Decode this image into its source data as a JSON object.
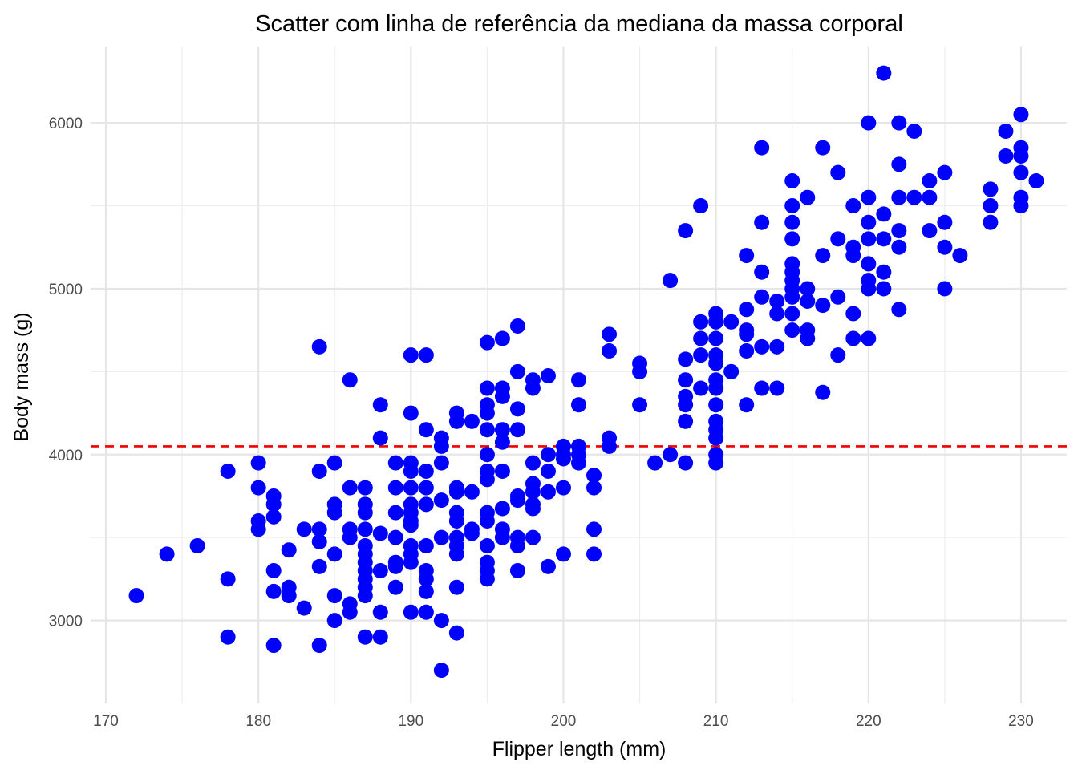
{
  "chart_data": {
    "type": "scatter",
    "title": "Scatter com linha de referência da mediana da massa corporal",
    "xlabel": "Flipper length (mm)",
    "ylabel": "Body mass (g)",
    "xlim": [
      169,
      233
    ],
    "ylim": [
      2500,
      6460
    ],
    "x_ticks": [
      170,
      180,
      190,
      200,
      210,
      220,
      230
    ],
    "y_ticks": [
      3000,
      4000,
      5000,
      6000
    ],
    "grid": true,
    "legend": "none",
    "point_color": "#0000ff",
    "reference_line": {
      "orientation": "horizontal",
      "value": 4050,
      "style": "dashed",
      "color": "#ee0000"
    },
    "points": [
      [
        172,
        3150
      ],
      [
        174,
        3400
      ],
      [
        176,
        3450
      ],
      [
        178,
        3900
      ],
      [
        178,
        3250
      ],
      [
        178,
        2900
      ],
      [
        180,
        3950
      ],
      [
        180,
        3800
      ],
      [
        180,
        3600
      ],
      [
        180,
        3550
      ],
      [
        181,
        3750
      ],
      [
        181,
        3700
      ],
      [
        181,
        3625
      ],
      [
        181,
        3300
      ],
      [
        181,
        3175
      ],
      [
        181,
        2850
      ],
      [
        182,
        3425
      ],
      [
        182,
        3200
      ],
      [
        182,
        3150
      ],
      [
        183,
        3550
      ],
      [
        183,
        3075
      ],
      [
        184,
        4650
      ],
      [
        184,
        3900
      ],
      [
        184,
        3550
      ],
      [
        184,
        3475
      ],
      [
        184,
        3325
      ],
      [
        184,
        2850
      ],
      [
        185,
        3950
      ],
      [
        185,
        3700
      ],
      [
        185,
        3650
      ],
      [
        185,
        3400
      ],
      [
        185,
        3150
      ],
      [
        185,
        3000
      ],
      [
        186,
        4450
      ],
      [
        186,
        3800
      ],
      [
        186,
        3550
      ],
      [
        186,
        3500
      ],
      [
        186,
        3100
      ],
      [
        186,
        3050
      ],
      [
        187,
        3800
      ],
      [
        187,
        3700
      ],
      [
        187,
        3650
      ],
      [
        187,
        3550
      ],
      [
        187,
        3450
      ],
      [
        187,
        3400
      ],
      [
        187,
        3350
      ],
      [
        187,
        3300
      ],
      [
        187,
        3250
      ],
      [
        187,
        3200
      ],
      [
        187,
        3150
      ],
      [
        187,
        2900
      ],
      [
        188,
        4300
      ],
      [
        188,
        4100
      ],
      [
        188,
        3525
      ],
      [
        188,
        3300
      ],
      [
        188,
        3050
      ],
      [
        188,
        2900
      ],
      [
        189,
        3950
      ],
      [
        189,
        3800
      ],
      [
        189,
        3650
      ],
      [
        189,
        3500
      ],
      [
        189,
        3350
      ],
      [
        189,
        3325
      ],
      [
        189,
        3200
      ],
      [
        190,
        4600
      ],
      [
        190,
        4250
      ],
      [
        190,
        3950
      ],
      [
        190,
        3900
      ],
      [
        190,
        3800
      ],
      [
        190,
        3700
      ],
      [
        190,
        3650
      ],
      [
        190,
        3600
      ],
      [
        190,
        3575
      ],
      [
        190,
        3450
      ],
      [
        190,
        3400
      ],
      [
        190,
        3350
      ],
      [
        190,
        3050
      ],
      [
        191,
        4600
      ],
      [
        191,
        4150
      ],
      [
        191,
        3900
      ],
      [
        191,
        3800
      ],
      [
        191,
        3700
      ],
      [
        191,
        3450
      ],
      [
        191,
        3300
      ],
      [
        191,
        3250
      ],
      [
        191,
        3175
      ],
      [
        191,
        3050
      ],
      [
        192,
        4100
      ],
      [
        192,
        4050
      ],
      [
        192,
        3950
      ],
      [
        192,
        3725
      ],
      [
        192,
        3500
      ],
      [
        192,
        3000
      ],
      [
        192,
        2700
      ],
      [
        193,
        4250
      ],
      [
        193,
        4200
      ],
      [
        193,
        3800
      ],
      [
        193,
        3775
      ],
      [
        193,
        3650
      ],
      [
        193,
        3600
      ],
      [
        193,
        3500
      ],
      [
        193,
        3450
      ],
      [
        193,
        3400
      ],
      [
        193,
        3200
      ],
      [
        193,
        2925
      ],
      [
        194,
        4200
      ],
      [
        194,
        3775
      ],
      [
        194,
        3550
      ],
      [
        194,
        3525
      ],
      [
        195,
        4675
      ],
      [
        195,
        4400
      ],
      [
        195,
        4300
      ],
      [
        195,
        4250
      ],
      [
        195,
        4150
      ],
      [
        195,
        4000
      ],
      [
        195,
        3900
      ],
      [
        195,
        3850
      ],
      [
        195,
        3650
      ],
      [
        195,
        3600
      ],
      [
        195,
        3450
      ],
      [
        195,
        3350
      ],
      [
        195,
        3300
      ],
      [
        195,
        3250
      ],
      [
        196,
        4700
      ],
      [
        196,
        4400
      ],
      [
        196,
        4350
      ],
      [
        196,
        4150
      ],
      [
        196,
        4075
      ],
      [
        196,
        3900
      ],
      [
        196,
        3675
      ],
      [
        196,
        3550
      ],
      [
        196,
        3500
      ],
      [
        197,
        4775
      ],
      [
        197,
        4500
      ],
      [
        197,
        4275
      ],
      [
        197,
        4150
      ],
      [
        197,
        3750
      ],
      [
        197,
        3725
      ],
      [
        197,
        3500
      ],
      [
        197,
        3450
      ],
      [
        197,
        3300
      ],
      [
        198,
        4450
      ],
      [
        198,
        4400
      ],
      [
        198,
        3950
      ],
      [
        198,
        3825
      ],
      [
        198,
        3775
      ],
      [
        198,
        3700
      ],
      [
        198,
        3675
      ],
      [
        198,
        3500
      ],
      [
        199,
        4475
      ],
      [
        199,
        4000
      ],
      [
        199,
        3900
      ],
      [
        199,
        3775
      ],
      [
        199,
        3325
      ],
      [
        200,
        4050
      ],
      [
        200,
        4000
      ],
      [
        200,
        3975
      ],
      [
        200,
        3800
      ],
      [
        200,
        3400
      ],
      [
        201,
        4450
      ],
      [
        201,
        4300
      ],
      [
        201,
        4050
      ],
      [
        201,
        4000
      ],
      [
        201,
        3950
      ],
      [
        202,
        3875
      ],
      [
        202,
        3800
      ],
      [
        202,
        3550
      ],
      [
        202,
        3400
      ],
      [
        203,
        4725
      ],
      [
        203,
        4625
      ],
      [
        203,
        4100
      ],
      [
        203,
        4050
      ],
      [
        205,
        4550
      ],
      [
        205,
        4500
      ],
      [
        205,
        4300
      ],
      [
        206,
        3950
      ],
      [
        207,
        5050
      ],
      [
        207,
        4000
      ],
      [
        208,
        5350
      ],
      [
        208,
        4575
      ],
      [
        208,
        4450
      ],
      [
        208,
        4350
      ],
      [
        208,
        4300
      ],
      [
        208,
        4200
      ],
      [
        208,
        3950
      ],
      [
        209,
        5500
      ],
      [
        209,
        4800
      ],
      [
        209,
        4700
      ],
      [
        209,
        4600
      ],
      [
        209,
        4400
      ],
      [
        210,
        4850
      ],
      [
        210,
        4800
      ],
      [
        210,
        4700
      ],
      [
        210,
        4600
      ],
      [
        210,
        4550
      ],
      [
        210,
        4450
      ],
      [
        210,
        4400
      ],
      [
        210,
        4300
      ],
      [
        210,
        4200
      ],
      [
        210,
        4150
      ],
      [
        210,
        4100
      ],
      [
        210,
        4000
      ],
      [
        210,
        3950
      ],
      [
        211,
        4800
      ],
      [
        211,
        4500
      ],
      [
        212,
        5200
      ],
      [
        212,
        4875
      ],
      [
        212,
        4750
      ],
      [
        212,
        4725
      ],
      [
        212,
        4625
      ],
      [
        212,
        4300
      ],
      [
        213,
        5850
      ],
      [
        213,
        5400
      ],
      [
        213,
        5100
      ],
      [
        213,
        4950
      ],
      [
        213,
        4650
      ],
      [
        213,
        4400
      ],
      [
        214,
        4925
      ],
      [
        214,
        4850
      ],
      [
        214,
        4650
      ],
      [
        214,
        4400
      ],
      [
        215,
        5650
      ],
      [
        215,
        5500
      ],
      [
        215,
        5400
      ],
      [
        215,
        5300
      ],
      [
        215,
        5150
      ],
      [
        215,
        5100
      ],
      [
        215,
        5050
      ],
      [
        215,
        5000
      ],
      [
        215,
        4950
      ],
      [
        215,
        4850
      ],
      [
        215,
        4750
      ],
      [
        216,
        5550
      ],
      [
        216,
        5000
      ],
      [
        216,
        4925
      ],
      [
        216,
        4750
      ],
      [
        216,
        4700
      ],
      [
        217,
        5850
      ],
      [
        217,
        5200
      ],
      [
        217,
        4900
      ],
      [
        217,
        4375
      ],
      [
        218,
        5700
      ],
      [
        218,
        5300
      ],
      [
        218,
        4950
      ],
      [
        218,
        4600
      ],
      [
        219,
        5500
      ],
      [
        219,
        5250
      ],
      [
        219,
        5200
      ],
      [
        219,
        4850
      ],
      [
        219,
        4700
      ],
      [
        220,
        6000
      ],
      [
        220,
        5550
      ],
      [
        220,
        5400
      ],
      [
        220,
        5300
      ],
      [
        220,
        5150
      ],
      [
        220,
        5050
      ],
      [
        220,
        5000
      ],
      [
        220,
        4700
      ],
      [
        221,
        6300
      ],
      [
        221,
        5450
      ],
      [
        221,
        5300
      ],
      [
        221,
        5100
      ],
      [
        221,
        5000
      ],
      [
        222,
        6000
      ],
      [
        222,
        5750
      ],
      [
        222,
        5550
      ],
      [
        222,
        5350
      ],
      [
        222,
        5250
      ],
      [
        222,
        4875
      ],
      [
        223,
        5950
      ],
      [
        223,
        5550
      ],
      [
        224,
        5650
      ],
      [
        224,
        5550
      ],
      [
        224,
        5350
      ],
      [
        225,
        5700
      ],
      [
        225,
        5400
      ],
      [
        225,
        5250
      ],
      [
        225,
        5000
      ],
      [
        226,
        5200
      ],
      [
        228,
        5600
      ],
      [
        228,
        5500
      ],
      [
        228,
        5400
      ],
      [
        229,
        5950
      ],
      [
        229,
        5800
      ],
      [
        230,
        6050
      ],
      [
        230,
        5850
      ],
      [
        230,
        5800
      ],
      [
        230,
        5700
      ],
      [
        230,
        5550
      ],
      [
        230,
        5500
      ],
      [
        231,
        5650
      ]
    ]
  }
}
